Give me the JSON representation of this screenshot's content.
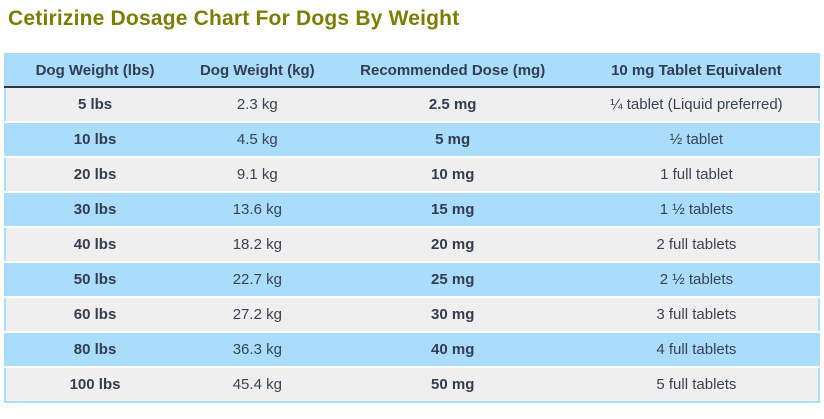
{
  "page": {
    "title": "Cetirizine Dosage Chart For Dogs By Weight"
  },
  "table": {
    "columns": [
      "Dog Weight (lbs)",
      "Dog Weight (kg)",
      "Recommended Dose (mg)",
      "10 mg Tablet Equivalent"
    ],
    "rows": [
      [
        "5 lbs",
        "2.3 kg",
        "2.5 mg",
        "¼ tablet (Liquid preferred)"
      ],
      [
        "10 lbs",
        "4.5 kg",
        "5 mg",
        "½ tablet"
      ],
      [
        "20 lbs",
        "9.1 kg",
        "10 mg",
        "1 full tablet"
      ],
      [
        "30 lbs",
        "13.6 kg",
        "15 mg",
        "1 ½ tablets"
      ],
      [
        "40 lbs",
        "18.2 kg",
        "20 mg",
        "2 full tablets"
      ],
      [
        "50 lbs",
        "22.7 kg",
        "25 mg",
        "2 ½ tablets"
      ],
      [
        "60 lbs",
        "27.2 kg",
        "30 mg",
        "3 full tablets"
      ],
      [
        "80 lbs",
        "36.3 kg",
        "40 mg",
        "4 full tablets"
      ],
      [
        "100 lbs",
        "45.4 kg",
        "50 mg",
        "5 full tablets"
      ]
    ]
  },
  "chart_data": {
    "type": "table",
    "title": "Cetirizine Dosage Chart For Dogs By Weight",
    "columns": [
      "Dog Weight (lbs)",
      "Dog Weight (kg)",
      "Recommended Dose (mg)",
      "10 mg Tablet Equivalent"
    ],
    "dog_weight_lbs": [
      5,
      10,
      20,
      30,
      40,
      50,
      60,
      80,
      100
    ],
    "dog_weight_kg": [
      2.3,
      4.5,
      9.1,
      13.6,
      18.2,
      22.7,
      27.2,
      36.3,
      45.4
    ],
    "recommended_dose_mg": [
      2.5,
      5,
      10,
      15,
      20,
      25,
      30,
      40,
      50
    ],
    "tablet_equivalent": [
      "¼ tablet (Liquid preferred)",
      "½ tablet",
      "1 full tablet",
      "1 ½ tablets",
      "2 full tablets",
      "2 ½ tablets",
      "3 full tablets",
      "4 full tablets",
      "5 full tablets"
    ]
  },
  "colors": {
    "title_text": "#7d7d04",
    "header_bg": "#a9ddfb",
    "header_text": "#333c50",
    "header_underline": "#2d3748",
    "row_gray": "#efefef",
    "row_blue": "#a9ddfb",
    "cell_text": "#3a4254",
    "row_separator": "#ffffff",
    "table_border": "#a9ddfb"
  }
}
